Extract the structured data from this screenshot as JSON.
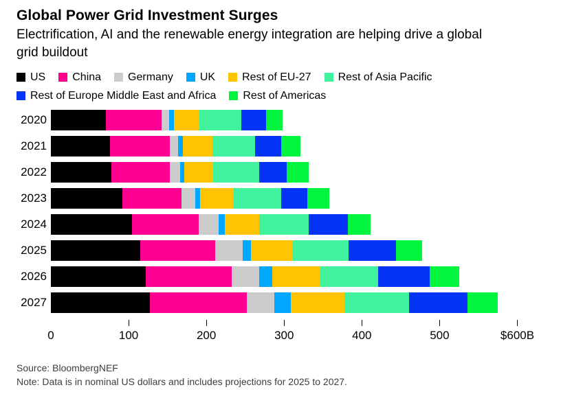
{
  "header": {
    "title": "Global Power Grid Investment Surges",
    "subtitle": "Electrification, AI and the renewable energy integration are helping drive a global grid buildout"
  },
  "chart_data": {
    "type": "bar",
    "variant": "horizontal-stacked",
    "title": "Global Power Grid Investment Surges",
    "unit": "billion USD",
    "categories": [
      "2020",
      "2021",
      "2022",
      "2023",
      "2024",
      "2025",
      "2026",
      "2027"
    ],
    "series": [
      {
        "name": "US",
        "color": "#000000",
        "values": [
          71,
          76,
          78,
          92,
          104,
          115,
          122,
          127
        ]
      },
      {
        "name": "China",
        "color": "#FF0090",
        "values": [
          71,
          77,
          75,
          76,
          86,
          96,
          111,
          125
        ]
      },
      {
        "name": "Germany",
        "color": "#CCCCCC",
        "values": [
          10,
          11,
          13,
          18,
          26,
          36,
          35,
          35
        ]
      },
      {
        "name": "UK",
        "color": "#00A7FF",
        "values": [
          6,
          6,
          6,
          6,
          8,
          10,
          17,
          22
        ]
      },
      {
        "name": "Rest of EU-27",
        "color": "#FFC400",
        "values": [
          33,
          38,
          37,
          43,
          44,
          54,
          62,
          69
        ]
      },
      {
        "name": "Rest of Asia Pacific",
        "color": "#40F19D",
        "values": [
          54,
          55,
          59,
          61,
          64,
          72,
          74,
          83
        ]
      },
      {
        "name": "Rest of Europe Middle East and Africa",
        "color": "#0533F5",
        "values": [
          32,
          33,
          35,
          34,
          50,
          61,
          66,
          75
        ]
      },
      {
        "name": "Rest of Americas",
        "color": "#00F53C",
        "values": [
          21,
          25,
          29,
          28,
          29,
          34,
          38,
          39
        ]
      }
    ],
    "totals": [
      298,
      321,
      332,
      358,
      411,
      478,
      525,
      575
    ],
    "xlim": [
      0,
      600
    ],
    "axis_ticks": [
      {
        "value": 0,
        "label": "0"
      },
      {
        "value": 100,
        "label": "100"
      },
      {
        "value": 200,
        "label": "200"
      },
      {
        "value": 300,
        "label": "300"
      },
      {
        "value": 400,
        "label": "400"
      },
      {
        "value": 500,
        "label": "500"
      },
      {
        "value": 600,
        "label": "$600B"
      }
    ],
    "legend_position": "top",
    "legend_rows_break_index": 6,
    "grid": false
  },
  "footer": {
    "source": "Source: BloombergNEF",
    "note": "Note: Data is in nominal US dollars and includes projections for 2025 to 2027."
  }
}
